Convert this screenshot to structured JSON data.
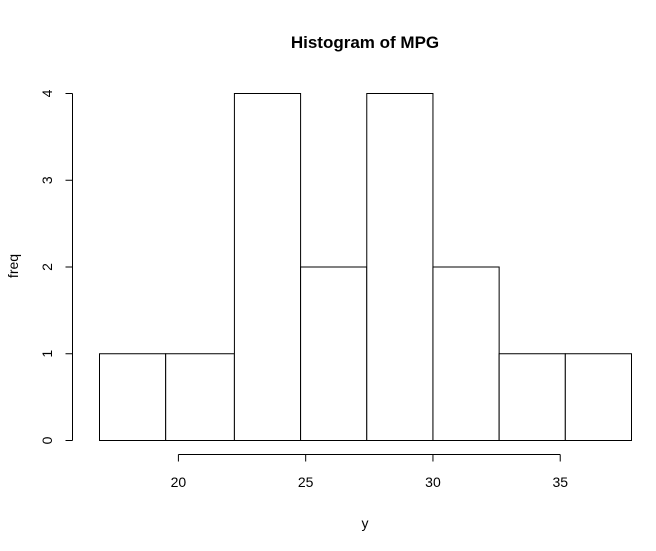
{
  "chart_data": {
    "type": "bar",
    "title": "Histogram of MPG",
    "xlabel": "y",
    "ylabel": "freq",
    "bins": [
      {
        "start": 16.9,
        "end": 19.5,
        "value": 1
      },
      {
        "start": 19.5,
        "end": 22.2,
        "value": 1
      },
      {
        "start": 22.2,
        "end": 24.8,
        "value": 4
      },
      {
        "start": 24.8,
        "end": 27.4,
        "value": 2
      },
      {
        "start": 27.4,
        "end": 30.0,
        "value": 4
      },
      {
        "start": 30.0,
        "end": 32.6,
        "value": 2
      },
      {
        "start": 32.6,
        "end": 35.2,
        "value": 1
      },
      {
        "start": 35.2,
        "end": 37.8,
        "value": 1
      }
    ],
    "xticks": [
      20,
      25,
      30,
      35
    ],
    "xtick_labels": [
      "20",
      "25",
      "30",
      "35"
    ],
    "yticks": [
      0,
      1,
      2,
      3,
      4
    ],
    "ytick_labels": [
      "0",
      "1",
      "2",
      "3",
      "4"
    ],
    "ylim": [
      0,
      4
    ],
    "grid": false
  }
}
